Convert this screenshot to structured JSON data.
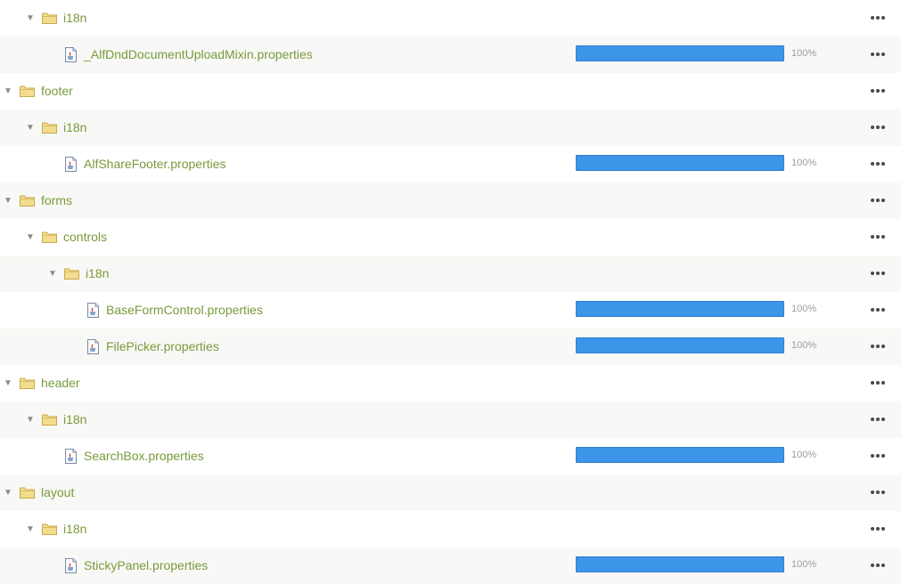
{
  "rows": [
    {
      "type": "folder",
      "level": 1,
      "label": "i18n",
      "alt": false
    },
    {
      "type": "file",
      "level": 2,
      "label": "_AlfDndDocumentUploadMixin.properties",
      "progress": 1.0,
      "pct": "100%",
      "alt": true
    },
    {
      "type": "folder",
      "level": 0,
      "label": "footer",
      "alt": false
    },
    {
      "type": "folder",
      "level": 1,
      "label": "i18n",
      "alt": true
    },
    {
      "type": "file",
      "level": 2,
      "label": "AlfShareFooter.properties",
      "progress": 1.0,
      "pct": "100%",
      "alt": false
    },
    {
      "type": "folder",
      "level": 0,
      "label": "forms",
      "alt": true
    },
    {
      "type": "folder",
      "level": 1,
      "label": "controls",
      "alt": false
    },
    {
      "type": "folder",
      "level": 2,
      "label": "i18n",
      "alt": true
    },
    {
      "type": "file",
      "level": 3,
      "label": "BaseFormControl.properties",
      "progress": 1.0,
      "pct": "100%",
      "alt": false
    },
    {
      "type": "file",
      "level": 3,
      "label": "FilePicker.properties",
      "progress": 1.0,
      "pct": "100%",
      "alt": true
    },
    {
      "type": "folder",
      "level": 0,
      "label": "header",
      "alt": false
    },
    {
      "type": "folder",
      "level": 1,
      "label": "i18n",
      "alt": true
    },
    {
      "type": "file",
      "level": 2,
      "label": "SearchBox.properties",
      "progress": 1.0,
      "pct": "100%",
      "alt": false
    },
    {
      "type": "folder",
      "level": 0,
      "label": "layout",
      "alt": true
    },
    {
      "type": "folder",
      "level": 1,
      "label": "i18n",
      "alt": false
    },
    {
      "type": "file",
      "level": 2,
      "label": "StickyPanel.properties",
      "progress": 1.0,
      "pct": "100%",
      "alt": true
    }
  ],
  "icons": {
    "folder": "folder-icon",
    "file": "java-properties-file-icon",
    "expand": "caret-down-icon",
    "menu": "more-options-icon"
  },
  "colors": {
    "link": "#7a9a3c",
    "progress": "#3d95ea",
    "row_alt": "#f8f8f6"
  }
}
